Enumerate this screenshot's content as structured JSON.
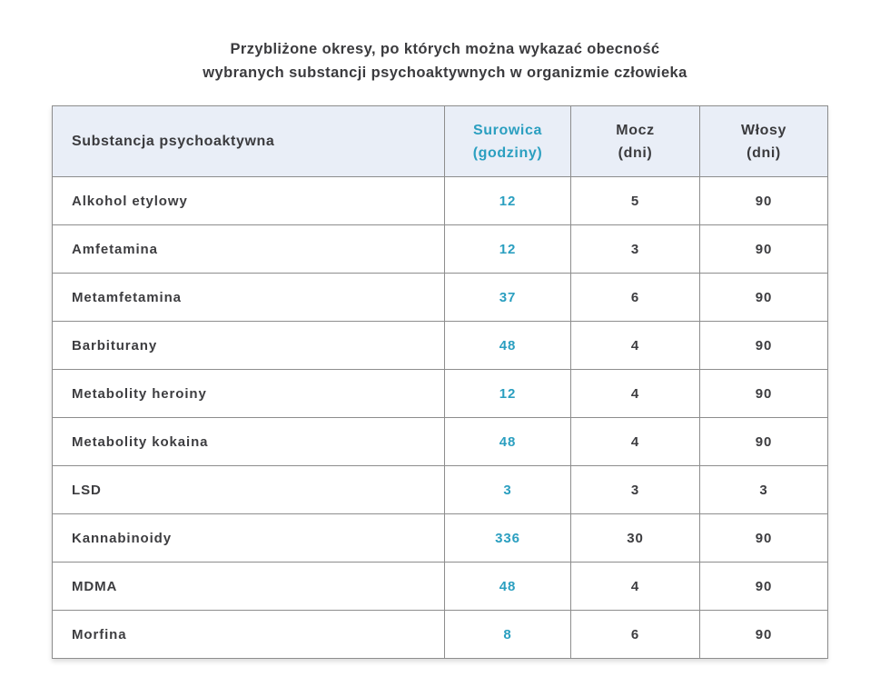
{
  "title": {
    "line1": "Przybliżone okresy, po których można wykazać obecność",
    "line2": "wybranych substancji psychoaktywnych w organizmie człowieka"
  },
  "table": {
    "header": {
      "substance": "Substancja psychoaktywna",
      "serum_line1": "Surowica",
      "serum_line2": "(godziny)",
      "urine_line1": "Mocz",
      "urine_line2": "(dni)",
      "hair_line1": "Włosy",
      "hair_line2": "(dni)"
    },
    "rows": [
      {
        "substance": "Alkohol etylowy",
        "serum": "12",
        "urine": "5",
        "hair": "90"
      },
      {
        "substance": "Amfetamina",
        "serum": "12",
        "urine": "3",
        "hair": "90"
      },
      {
        "substance": "Metamfetamina",
        "serum": "37",
        "urine": "6",
        "hair": "90"
      },
      {
        "substance": "Barbiturany",
        "serum": "48",
        "urine": "4",
        "hair": "90"
      },
      {
        "substance": "Metabolity heroiny",
        "serum": "12",
        "urine": "4",
        "hair": "90"
      },
      {
        "substance": "Metabolity kokaina",
        "serum": "48",
        "urine": "4",
        "hair": "90"
      },
      {
        "substance": "LSD",
        "serum": "3",
        "urine": "3",
        "hair": "3"
      },
      {
        "substance": "Kannabinoidy",
        "serum": "336",
        "urine": "30",
        "hair": "90"
      },
      {
        "substance": "MDMA",
        "serum": "48",
        "urine": "4",
        "hair": "90"
      },
      {
        "substance": "Morfina",
        "serum": "8",
        "urine": "6",
        "hair": "90"
      }
    ]
  },
  "colors": {
    "accent_teal": "#2b9fc0",
    "header_background": "#e9eef7",
    "grid_border": "#8d8d8d",
    "text": "#3d3d40",
    "page_background": "#ffffff"
  },
  "chart_data": {
    "type": "table",
    "title": "Przybliżone okresy, po których można wykazać obecność wybranych substancji psychoaktywnych w organizmie człowieka",
    "columns": [
      "Substancja psychoaktywna",
      "Surowica (godziny)",
      "Mocz (dni)",
      "Włosy (dni)"
    ],
    "rows": [
      [
        "Alkohol etylowy",
        12,
        5,
        90
      ],
      [
        "Amfetamina",
        12,
        3,
        90
      ],
      [
        "Metamfetamina",
        37,
        6,
        90
      ],
      [
        "Barbiturany",
        48,
        4,
        90
      ],
      [
        "Metabolity heroiny",
        12,
        4,
        90
      ],
      [
        "Metabolity kokaina",
        48,
        4,
        90
      ],
      [
        "LSD",
        3,
        3,
        3
      ],
      [
        "Kannabinoidy",
        336,
        30,
        90
      ],
      [
        "MDMA",
        48,
        4,
        90
      ],
      [
        "Morfina",
        8,
        6,
        90
      ]
    ],
    "layout_hints": {
      "highlight_column": "Surowica (godziny)",
      "highlight_color": "#2b9fc0",
      "header_background": "#e9eef7",
      "grid": true
    }
  }
}
